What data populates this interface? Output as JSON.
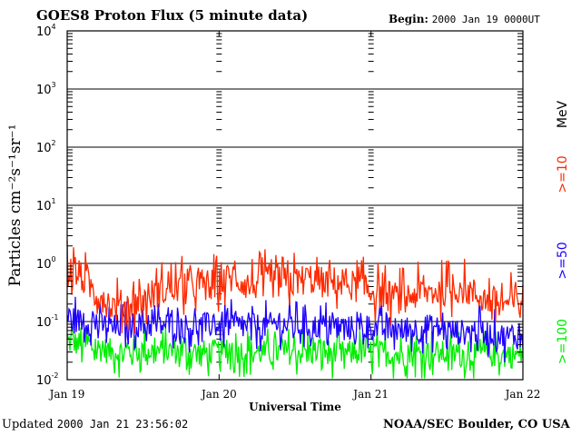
{
  "header": {
    "title": "GOES8 Proton Flux (5 minute data)",
    "begin_label": "Begin:",
    "begin_value": "2000 Jan 19 0000UT"
  },
  "footer": {
    "updated_label": "Updated",
    "updated_value": "2000 Jan 21 23:56:02",
    "credit": "NOAA/SEC Boulder, CO USA"
  },
  "colors": {
    "ge10": "#ff2a00",
    "ge50": "#1c00ff",
    "ge100": "#00ee00",
    "axis": "#000000"
  },
  "chart_data": {
    "type": "line",
    "title": "GOES8 Proton Flux (5 minute data)",
    "xlabel": "Universal Time",
    "ylabel": "Particles cm⁻²s⁻¹sr⁻¹",
    "y_scale": "log",
    "ylim": [
      0.01,
      10000
    ],
    "y_ticks": [
      {
        "value": 0.01,
        "base": "10",
        "exp": "-2"
      },
      {
        "value": 0.1,
        "base": "10",
        "exp": "-1"
      },
      {
        "value": 1,
        "base": "10",
        "exp": "0"
      },
      {
        "value": 10,
        "base": "10",
        "exp": "1"
      },
      {
        "value": 100,
        "base": "10",
        "exp": "2"
      },
      {
        "value": 1000,
        "base": "10",
        "exp": "3"
      },
      {
        "value": 10000,
        "base": "10",
        "exp": "4"
      }
    ],
    "x_ticks": [
      "Jan 19",
      "Jan 20",
      "Jan 21",
      "Jan 22"
    ],
    "x_range_days": [
      "2000 Jan 19",
      "2000 Jan 22"
    ],
    "grid": true,
    "legend_unit": "MeV",
    "series": [
      {
        "name": ">=10",
        "color": "#ff2a00",
        "x_days": [
          0,
          0.1,
          0.2,
          0.3,
          0.4,
          0.5,
          0.6,
          0.7,
          0.8,
          0.9,
          1.0,
          1.1,
          1.2,
          1.3,
          1.4,
          1.5,
          1.6,
          1.7,
          1.8,
          1.9,
          2.0,
          2.1,
          2.2,
          2.3,
          2.4,
          2.5,
          2.6,
          2.7,
          2.8,
          2.9,
          3.0
        ],
        "values": [
          0.9,
          0.55,
          0.3,
          0.18,
          0.2,
          0.25,
          0.32,
          0.38,
          0.4,
          0.45,
          0.42,
          0.6,
          0.4,
          0.5,
          0.45,
          0.5,
          0.55,
          0.45,
          0.5,
          0.4,
          0.35,
          0.28,
          0.25,
          0.3,
          0.32,
          0.35,
          0.38,
          0.28,
          0.22,
          0.2,
          0.25
        ]
      },
      {
        "name": ">=50",
        "color": "#1c00ff",
        "x_days": [
          0,
          0.1,
          0.2,
          0.3,
          0.4,
          0.5,
          0.6,
          0.7,
          0.8,
          0.9,
          1.0,
          1.1,
          1.2,
          1.3,
          1.4,
          1.5,
          1.6,
          1.7,
          1.8,
          1.9,
          2.0,
          2.1,
          2.2,
          2.3,
          2.4,
          2.5,
          2.6,
          2.7,
          2.8,
          2.9,
          3.0
        ],
        "values": [
          0.12,
          0.1,
          0.09,
          0.08,
          0.085,
          0.09,
          0.085,
          0.09,
          0.08,
          0.085,
          0.09,
          0.085,
          0.08,
          0.085,
          0.09,
          0.085,
          0.08,
          0.085,
          0.08,
          0.075,
          0.08,
          0.075,
          0.07,
          0.075,
          0.08,
          0.07,
          0.065,
          0.07,
          0.06,
          0.055,
          0.055
        ]
      },
      {
        "name": ">=100",
        "color": "#00ee00",
        "x_days": [
          0,
          0.1,
          0.2,
          0.3,
          0.4,
          0.5,
          0.6,
          0.7,
          0.8,
          0.9,
          1.0,
          1.1,
          1.2,
          1.3,
          1.4,
          1.5,
          1.6,
          1.7,
          1.8,
          1.9,
          2.0,
          2.1,
          2.2,
          2.3,
          2.4,
          2.5,
          2.6,
          2.7,
          2.8,
          2.9,
          3.0
        ],
        "values": [
          0.045,
          0.04,
          0.035,
          0.03,
          0.03,
          0.032,
          0.03,
          0.031,
          0.03,
          0.029,
          0.03,
          0.031,
          0.03,
          0.029,
          0.03,
          0.03,
          0.029,
          0.03,
          0.028,
          0.029,
          0.03,
          0.028,
          0.027,
          0.028,
          0.029,
          0.028,
          0.027,
          0.028,
          0.027,
          0.026,
          0.027
        ]
      }
    ]
  }
}
